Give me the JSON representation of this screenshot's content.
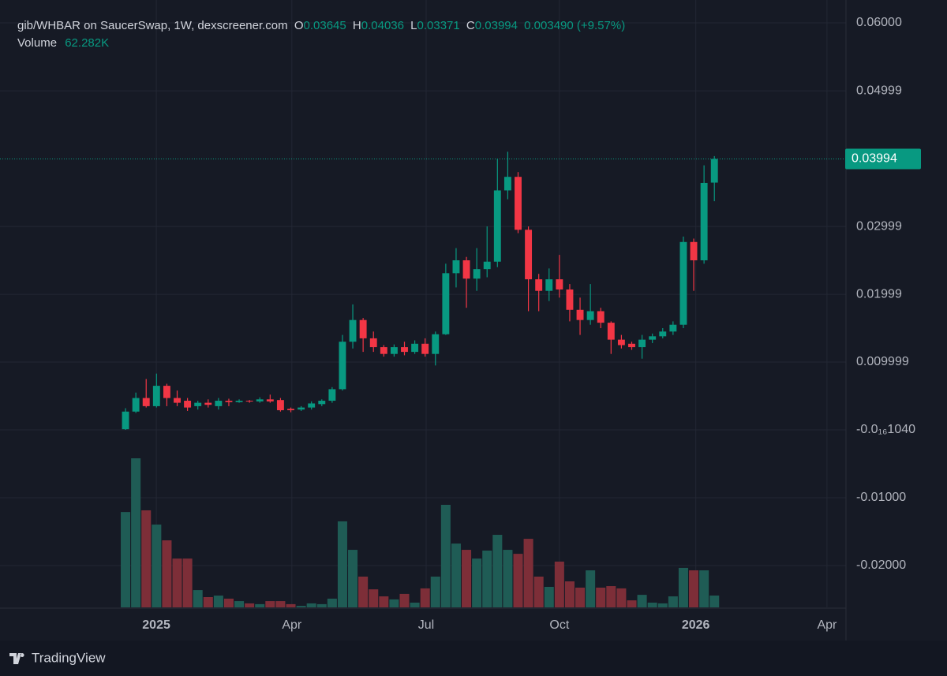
{
  "chart_data": {
    "type": "candlestick",
    "header": {
      "symbol": "gib/WHBAR on SaucerSwap, 1W, dexscreener.com",
      "open_label": "O",
      "high_label": "H",
      "low_label": "L",
      "close_label": "C",
      "change": "0.003490",
      "change_pct": "(+9.57%)",
      "volume_title": "Volume",
      "volume_value": "62.282K"
    },
    "branding": "TradingView",
    "up_color": "#089981",
    "down_color": "#f23645",
    "volume_up_color": "#1f5c55",
    "volume_down_color": "#7d2e38",
    "grid": true,
    "open": [
      0.0001,
      0.0027,
      0.0047,
      0.0035,
      0.0065,
      0.0047,
      0.0043,
      0.0035,
      0.004,
      0.0035,
      0.0043,
      0.0041,
      0.0043,
      0.0042,
      0.0045,
      0.0044,
      0.0031,
      0.003,
      0.0033,
      0.0038,
      0.0043,
      0.006,
      0.013,
      0.0162,
      0.0135,
      0.0122,
      0.0112,
      0.0122,
      0.0115,
      0.0127,
      0.0112,
      0.0141,
      0.0231,
      0.025,
      0.0223,
      0.0237,
      0.0248,
      0.0353,
      0.0373,
      0.0295,
      0.0222,
      0.0205,
      0.0222,
      0.0207,
      0.0177,
      0.0162,
      0.0175,
      0.0158,
      0.0133,
      0.0127,
      0.0122,
      0.0133,
      0.0138,
      0.0145,
      0.0155,
      0.0277,
      0.025,
      0.03645
    ],
    "high": [
      0.0032,
      0.0055,
      0.0075,
      0.0083,
      0.0068,
      0.0058,
      0.0047,
      0.0043,
      0.0045,
      0.0047,
      0.0046,
      0.0045,
      0.0044,
      0.0048,
      0.0052,
      0.0047,
      0.0033,
      0.0035,
      0.0042,
      0.0045,
      0.0063,
      0.014,
      0.0185,
      0.0165,
      0.0145,
      0.0125,
      0.0126,
      0.013,
      0.0132,
      0.0135,
      0.0145,
      0.0245,
      0.0268,
      0.0255,
      0.0268,
      0.03,
      0.04,
      0.041,
      0.038,
      0.03,
      0.023,
      0.0238,
      0.0258,
      0.0215,
      0.0195,
      0.0215,
      0.018,
      0.016,
      0.014,
      0.013,
      0.014,
      0.0142,
      0.015,
      0.016,
      0.0285,
      0.0282,
      0.039,
      0.04036
    ],
    "low": [
      0.0,
      0.0025,
      0.0033,
      0.0033,
      0.0035,
      0.0035,
      0.0028,
      0.003,
      0.0033,
      0.003,
      0.0035,
      0.004,
      0.004,
      0.004,
      0.004,
      0.0027,
      0.0026,
      0.0028,
      0.003,
      0.0035,
      0.004,
      0.0058,
      0.012,
      0.0115,
      0.0115,
      0.0108,
      0.0108,
      0.011,
      0.0112,
      0.0108,
      0.0095,
      0.014,
      0.021,
      0.018,
      0.0205,
      0.0225,
      0.024,
      0.034,
      0.029,
      0.0175,
      0.0175,
      0.019,
      0.0195,
      0.016,
      0.014,
      0.0155,
      0.015,
      0.0112,
      0.012,
      0.0118,
      0.0105,
      0.0128,
      0.0135,
      0.014,
      0.015,
      0.0205,
      0.0245,
      0.03371
    ],
    "close": [
      0.0027,
      0.0047,
      0.0035,
      0.0065,
      0.0047,
      0.004,
      0.0033,
      0.004,
      0.0037,
      0.0043,
      0.0041,
      0.0043,
      0.0042,
      0.0045,
      0.0042,
      0.0029,
      0.0029,
      0.0033,
      0.0039,
      0.0043,
      0.006,
      0.013,
      0.0162,
      0.0135,
      0.0122,
      0.0112,
      0.0122,
      0.0115,
      0.0127,
      0.0112,
      0.0141,
      0.0231,
      0.025,
      0.0223,
      0.0237,
      0.0248,
      0.0353,
      0.0373,
      0.0295,
      0.0222,
      0.0205,
      0.0222,
      0.0207,
      0.0177,
      0.0162,
      0.0175,
      0.0158,
      0.0133,
      0.0125,
      0.0122,
      0.0133,
      0.0138,
      0.0145,
      0.0155,
      0.0277,
      0.025,
      0.0364,
      0.03994
    ],
    "volume": [
      502000,
      785000,
      511000,
      436000,
      353000,
      257000,
      257000,
      91000,
      54000,
      62000,
      46000,
      33000,
      21000,
      17000,
      33000,
      33000,
      17000,
      8000,
      21000,
      17000,
      46000,
      453000,
      303000,
      162000,
      95000,
      58000,
      42000,
      71000,
      25000,
      100000,
      162000,
      540000,
      336000,
      303000,
      257000,
      299000,
      382000,
      303000,
      282000,
      361000,
      162000,
      108000,
      241000,
      137000,
      104000,
      195000,
      104000,
      112000,
      100000,
      37000,
      66000,
      25000,
      21000,
      58000,
      208000,
      195000,
      195000,
      62282
    ],
    "ylim": [
      -0.02616,
      0.06337
    ],
    "yticks": [
      {
        "value": 0.06,
        "label": "0.06000"
      },
      0.04999,
      0.02999,
      0.01999,
      0.009999,
      {
        "value": -1.04e-17,
        "label": "-0.0₁₆1040"
      },
      {
        "value": -0.01,
        "label": "-0.01000"
      },
      {
        "value": -0.02,
        "label": "-0.02000"
      }
    ],
    "xlim": [
      -12.15,
      69.74
    ],
    "xticks": [
      {
        "value": 2.98,
        "label": "2025"
      },
      {
        "value": 16.1,
        "label": "Apr"
      },
      {
        "value": 29.1,
        "label": "Jul"
      },
      {
        "value": 42.0,
        "label": "Oct"
      },
      {
        "value": 55.2,
        "label": "2026"
      },
      {
        "value": 67.9,
        "label": "Apr"
      }
    ]
  }
}
